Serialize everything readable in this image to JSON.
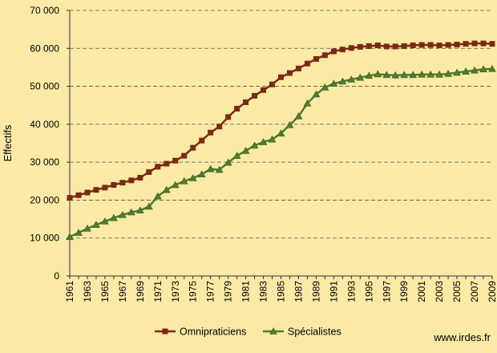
{
  "chart_data": {
    "type": "line",
    "ylabel": "Effectifs",
    "xlabel": "",
    "ylim": [
      0,
      70000
    ],
    "y_ticks": [
      0,
      10000,
      20000,
      30000,
      40000,
      50000,
      60000,
      70000
    ],
    "y_tick_labels": [
      "0",
      "10 000",
      "20 000",
      "30 000",
      "40 000",
      "50 000",
      "60 000",
      "70 000"
    ],
    "x": [
      1961,
      1962,
      1963,
      1964,
      1965,
      1966,
      1967,
      1968,
      1969,
      1970,
      1971,
      1972,
      1973,
      1974,
      1975,
      1976,
      1977,
      1978,
      1979,
      1980,
      1981,
      1982,
      1983,
      1984,
      1985,
      1986,
      1987,
      1988,
      1989,
      1990,
      1991,
      1992,
      1993,
      1994,
      1995,
      1996,
      1997,
      1998,
      1999,
      2000,
      2001,
      2002,
      2003,
      2004,
      2005,
      2006,
      2007,
      2008,
      2009
    ],
    "x_tick_labels": [
      "1961",
      "1963",
      "1965",
      "1967",
      "1969",
      "1971",
      "1973",
      "1975",
      "1977",
      "1979",
      "1981",
      "1983",
      "1985",
      "1987",
      "1989",
      "1991",
      "1993",
      "1995",
      "1997",
      "1999",
      "2001",
      "2003",
      "2005",
      "2007",
      "2009"
    ],
    "grid": true,
    "legend_position": "bottom",
    "series": [
      {
        "name": "Omnipraticiens",
        "color": "#7a2a12",
        "marker": "square",
        "values": [
          20600,
          21300,
          22000,
          22700,
          23300,
          24000,
          24600,
          25200,
          25900,
          27400,
          28800,
          29600,
          30400,
          31700,
          33800,
          35700,
          37800,
          39400,
          41900,
          44100,
          45800,
          47500,
          49000,
          50500,
          52400,
          53500,
          54700,
          56000,
          57200,
          58200,
          59200,
          59700,
          60100,
          60400,
          60600,
          60800,
          60500,
          60500,
          60600,
          60800,
          60900,
          60900,
          60800,
          60900,
          61000,
          61200,
          61300,
          61300,
          61200
        ]
      },
      {
        "name": "Spécialistes",
        "color": "#4e7d2f",
        "marker": "triangle",
        "values": [
          10300,
          11400,
          12500,
          13500,
          14400,
          15300,
          16100,
          16800,
          17300,
          18300,
          21000,
          22700,
          24000,
          25000,
          25800,
          26800,
          28200,
          28000,
          29900,
          31700,
          33000,
          34400,
          35300,
          36000,
          37600,
          39800,
          42100,
          45500,
          47900,
          49700,
          50700,
          51300,
          51800,
          52300,
          52800,
          53200,
          53000,
          52900,
          53000,
          53000,
          53100,
          53100,
          53100,
          53300,
          53600,
          53900,
          54200,
          54500,
          54600
        ]
      }
    ]
  },
  "source": "www.irdes.fr"
}
